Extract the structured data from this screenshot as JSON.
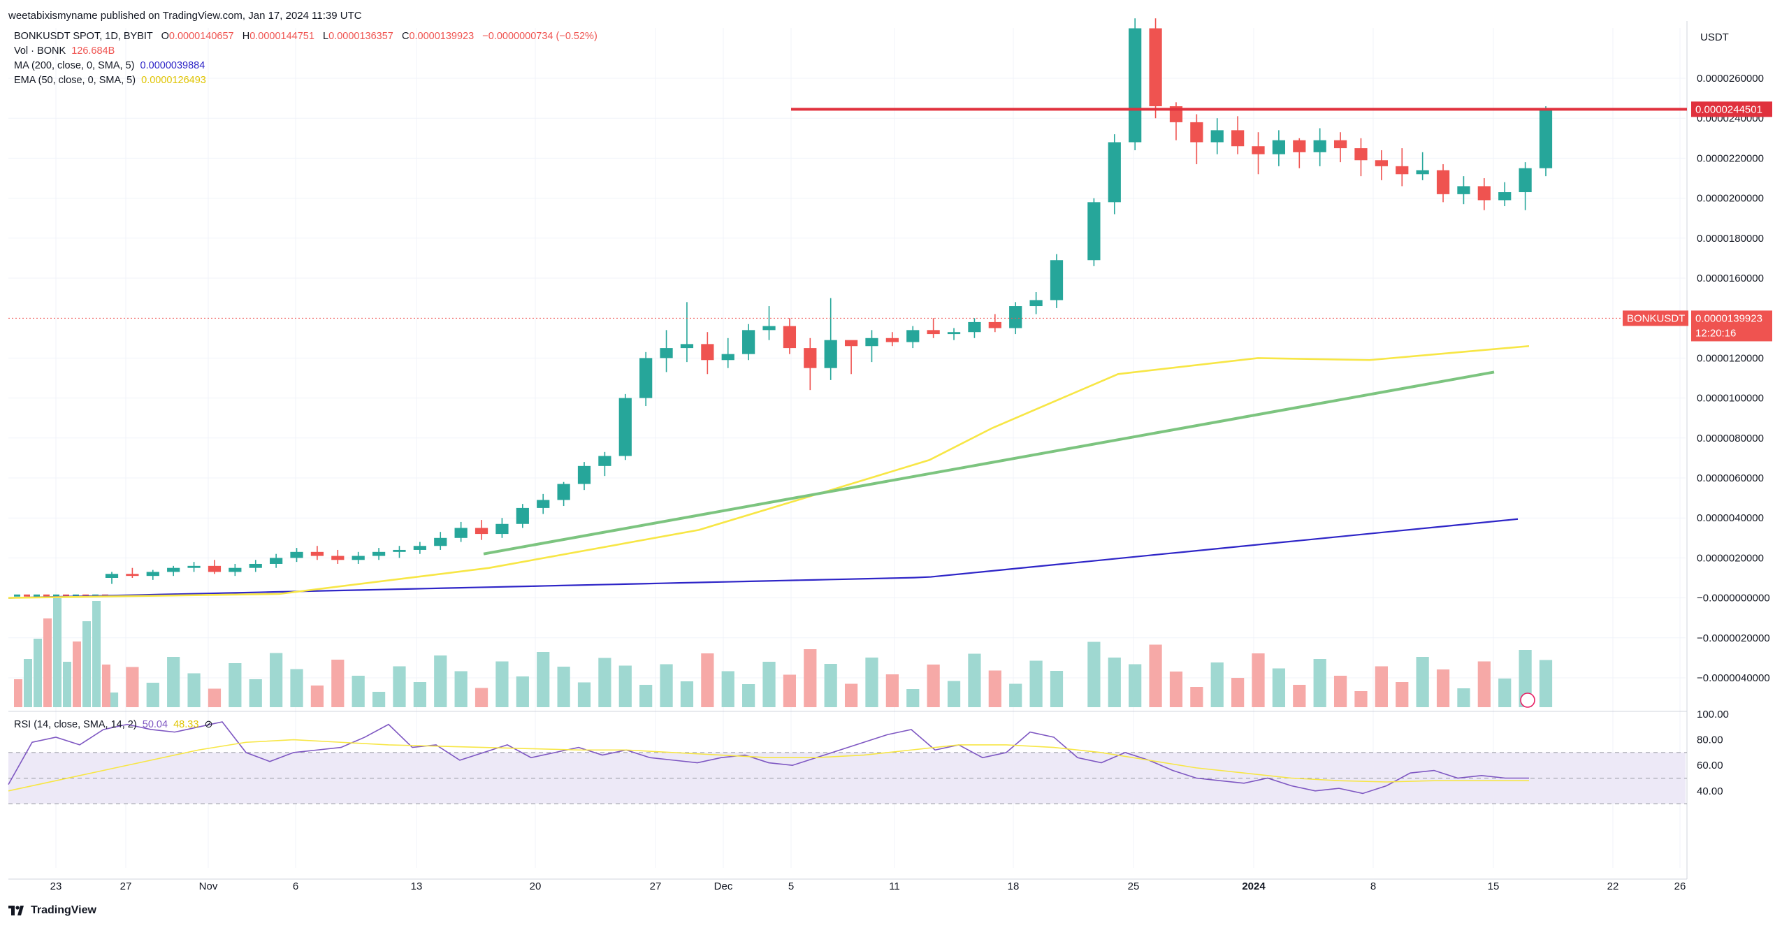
{
  "header": {
    "published": "weetabixismyname published on TradingView.com, Jan 17, 2024 11:39 UTC",
    "symbol_line": "BONKUSDT SPOT, 1D, BYBIT",
    "ohlc": {
      "o_label": "O",
      "o": "0.0000140657",
      "h_label": "H",
      "h": "0.0000144751",
      "l_label": "L",
      "l": "0.0000136357",
      "c_label": "C",
      "c": "0.0000139923",
      "change": "−0.0000000734 (−0.52%)"
    },
    "vol_label": "Vol · BONK",
    "vol_value": "126.684B",
    "ma_label": "MA (200, close, 0, SMA, 5)",
    "ma_value": "0.0000039884",
    "ema_label": "EMA (50, close, 0, SMA, 5)",
    "ema_value": "0.0000126493",
    "rsi_label": "RSI (14, close, SMA, 14, 2)",
    "rsi_value": "50.04",
    "rsi_ma_value": "48.33"
  },
  "price_axis": {
    "currency": "USDT",
    "ticks": [
      "0.0000260000",
      "0.0000240000",
      "0.0000220000",
      "0.0000200000",
      "0.0000180000",
      "0.0000160000",
      "0.0000120000",
      "0.0000100000",
      "0.0000080000",
      "0.0000060000",
      "0.0000040000",
      "0.0000020000",
      "−0.0000000000",
      "−0.0000020000",
      "−0.0000040000"
    ],
    "resistance_label": "0.0000244501",
    "symbol_tag": "BONKUSDT",
    "last_price_label": "0.0000139923",
    "countdown": "12:20:16"
  },
  "rsi_axis": {
    "ticks": [
      "100.00",
      "80.00",
      "60.00",
      "40.00"
    ]
  },
  "time_axis": {
    "ticks": [
      "23",
      "27",
      "Nov",
      "6",
      "13",
      "20",
      "27",
      "Dec",
      "5",
      "11",
      "18",
      "25",
      "2024",
      "8",
      "15",
      "22",
      "26"
    ]
  },
  "footer": {
    "brand": "TradingView"
  },
  "colors": {
    "up": "#26a69a",
    "down": "#ef5350",
    "ma": "#2e25c7",
    "ema": "#f7e645",
    "trend": "#7cc47f",
    "resistance": "#e0313d",
    "rsi": "#7e57c2",
    "rsi_band": "#ede9f7"
  },
  "chart_data": {
    "type": "candlestick",
    "title": "BONKUSDT SPOT, 1D, BYBIT",
    "ylim": [
      -5e-06,
      2.8e-05
    ],
    "candles_ohlc_scaled_1e-7": [
      [
        1.0,
        1.3,
        0.7,
        1.2
      ],
      [
        1.2,
        1.5,
        1.0,
        1.1
      ],
      [
        1.1,
        1.4,
        0.9,
        1.3
      ],
      [
        1.3,
        1.6,
        1.1,
        1.5
      ],
      [
        1.5,
        1.8,
        1.3,
        1.6
      ],
      [
        1.6,
        1.9,
        1.2,
        1.3
      ],
      [
        1.3,
        1.7,
        1.1,
        1.5
      ],
      [
        1.5,
        1.9,
        1.3,
        1.7
      ],
      [
        1.7,
        2.2,
        1.5,
        2.0
      ],
      [
        2.0,
        2.5,
        1.8,
        2.3
      ],
      [
        2.3,
        2.6,
        1.9,
        2.1
      ],
      [
        2.1,
        2.4,
        1.7,
        1.9
      ],
      [
        1.9,
        2.3,
        1.7,
        2.1
      ],
      [
        2.1,
        2.5,
        1.9,
        2.3
      ],
      [
        2.3,
        2.6,
        2.0,
        2.4
      ],
      [
        2.4,
        2.8,
        2.2,
        2.6
      ],
      [
        2.6,
        3.3,
        2.4,
        3.0
      ],
      [
        3.0,
        3.8,
        2.8,
        3.5
      ],
      [
        3.5,
        3.9,
        2.9,
        3.2
      ],
      [
        3.2,
        4.0,
        3.0,
        3.7
      ],
      [
        3.7,
        4.7,
        3.5,
        4.5
      ],
      [
        4.5,
        5.2,
        4.2,
        4.9
      ],
      [
        4.9,
        5.8,
        4.6,
        5.7
      ],
      [
        5.7,
        6.8,
        5.4,
        6.6
      ],
      [
        6.6,
        7.3,
        6.1,
        7.1
      ],
      [
        7.1,
        10.2,
        6.9,
        10.0
      ],
      [
        10.0,
        12.3,
        9.6,
        12.0
      ],
      [
        12.0,
        13.4,
        11.3,
        12.5
      ],
      [
        12.5,
        14.8,
        11.8,
        12.7
      ],
      [
        12.7,
        13.3,
        11.2,
        11.9
      ],
      [
        11.9,
        13.0,
        11.5,
        12.2
      ],
      [
        12.2,
        13.7,
        11.9,
        13.4
      ],
      [
        13.4,
        14.6,
        12.9,
        13.6
      ],
      [
        13.6,
        14.0,
        12.2,
        12.5
      ],
      [
        12.5,
        13.0,
        10.4,
        11.5
      ],
      [
        11.5,
        15.0,
        10.9,
        12.9
      ],
      [
        12.9,
        12.7,
        11.2,
        12.6
      ],
      [
        12.6,
        13.4,
        11.8,
        13.0
      ],
      [
        13.0,
        13.3,
        12.6,
        12.8
      ],
      [
        12.8,
        13.6,
        12.5,
        13.4
      ],
      [
        13.4,
        14.0,
        13.0,
        13.2
      ],
      [
        13.2,
        13.5,
        12.9,
        13.3
      ],
      [
        13.3,
        14.0,
        13.0,
        13.8
      ],
      [
        13.8,
        14.2,
        13.3,
        13.5
      ],
      [
        13.5,
        14.8,
        13.2,
        14.6
      ],
      [
        14.6,
        15.3,
        14.2,
        14.9
      ],
      [
        14.9,
        17.2,
        14.5,
        16.9
      ],
      [
        16.9,
        20.0,
        16.6,
        19.8
      ],
      [
        19.8,
        23.2,
        19.2,
        22.8
      ],
      [
        22.8,
        29.0,
        22.4,
        28.5
      ],
      [
        28.5,
        29.0,
        24.0,
        24.6
      ],
      [
        24.6,
        24.8,
        22.9,
        23.8
      ],
      [
        23.8,
        24.2,
        21.7,
        22.8
      ],
      [
        22.8,
        24.0,
        22.2,
        23.4
      ],
      [
        23.4,
        24.1,
        22.2,
        22.6
      ],
      [
        22.6,
        23.3,
        21.2,
        22.2
      ],
      [
        22.2,
        23.4,
        21.6,
        22.9
      ],
      [
        22.9,
        23.0,
        21.5,
        22.3
      ],
      [
        22.3,
        23.5,
        21.6,
        22.9
      ],
      [
        22.9,
        23.3,
        21.8,
        22.5
      ],
      [
        22.5,
        23.0,
        21.1,
        21.9
      ],
      [
        21.9,
        22.4,
        20.9,
        21.6
      ],
      [
        21.6,
        22.5,
        20.6,
        21.2
      ],
      [
        21.2,
        22.3,
        20.9,
        21.4
      ],
      [
        21.4,
        21.7,
        19.8,
        20.2
      ],
      [
        20.2,
        21.1,
        19.7,
        20.6
      ],
      [
        20.6,
        21.0,
        19.4,
        19.9
      ],
      [
        19.9,
        20.8,
        19.6,
        20.3
      ],
      [
        20.3,
        21.8,
        19.4,
        21.5
      ],
      [
        21.5,
        24.6,
        21.1,
        24.4
      ]
    ],
    "ohlc": [
      {
        "o": 1e-07,
        "h": 2e-07,
        "l": 1e-07,
        "c": 1e-07
      }
    ],
    "ema50_last": 1.26493e-05,
    "ma200_last": 3.9884e-06,
    "resistance": 2.44501e-05,
    "last_close": 1.39923e-05,
    "rsi_last": 50.04,
    "rsi_ma_last": 48.33,
    "rsi_bands": [
      30,
      50,
      70
    ]
  }
}
